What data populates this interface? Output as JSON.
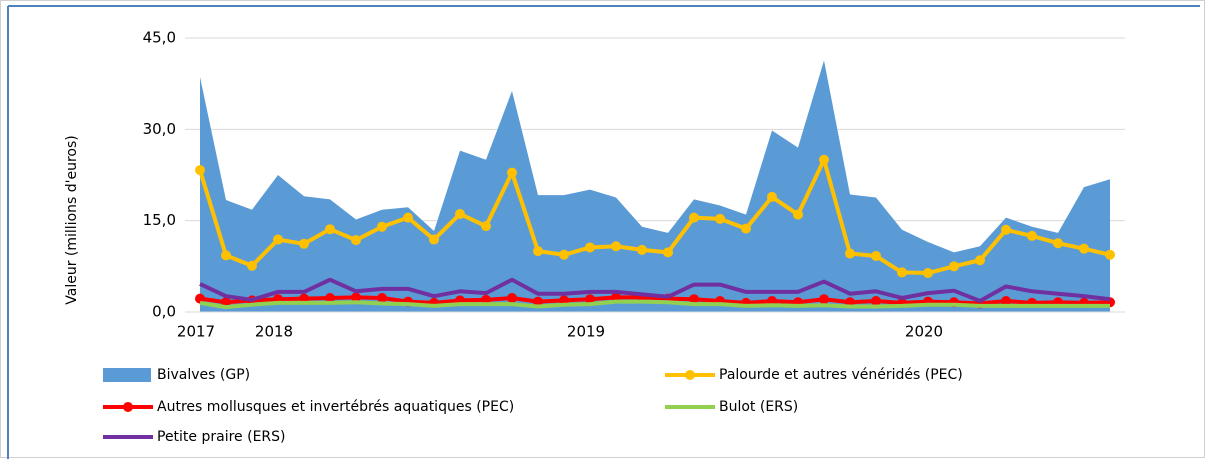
{
  "chart_data": {
    "type": "line",
    "y_label": "Valeur (millions d'euros)",
    "ylim": [
      0,
      45
    ],
    "yticks": [
      {
        "value": 0,
        "label": "0,0"
      },
      {
        "value": 15,
        "label": "15,0"
      },
      {
        "value": 30,
        "label": "30,0"
      },
      {
        "value": 45,
        "label": "45,0"
      }
    ],
    "grid": true,
    "categories": [
      "2017",
      null,
      null,
      "2018",
      null,
      null,
      null,
      null,
      null,
      null,
      null,
      null,
      null,
      null,
      null,
      "2019",
      null,
      null,
      null,
      null,
      null,
      null,
      null,
      null,
      null,
      null,
      null,
      null,
      "2020",
      null,
      null,
      null,
      null,
      null,
      null,
      null
    ],
    "series": [
      {
        "name": "Bivalves (GP)",
        "style": "area",
        "color": "#5b9bd5",
        "values": [
          38.6,
          18.4,
          16.8,
          22.5,
          19,
          18.5,
          15.2,
          16.8,
          17.2,
          13.3,
          26.5,
          25,
          36.3,
          19.2,
          19.2,
          20.1,
          18.8,
          14,
          13,
          18.5,
          17.5,
          16,
          29.8,
          27,
          41.3,
          19.3,
          18.8,
          13.5,
          11.5,
          9.8,
          10.8,
          15.5,
          14,
          13,
          20.5,
          21.8
        ]
      },
      {
        "name": "Palourde et autres vénéridés (PEC)",
        "style": "line",
        "marker": true,
        "color": "#ffc000",
        "values": [
          23.3,
          9.3,
          7.6,
          11.9,
          11.2,
          13.6,
          11.8,
          14,
          15.5,
          11.9,
          16.1,
          14.1,
          22.9,
          10,
          9.4,
          10.6,
          10.8,
          10.2,
          9.8,
          15.5,
          15.3,
          13.7,
          18.9,
          16,
          25,
          9.6,
          9.2,
          6.5,
          6.4,
          7.5,
          8.5,
          13.5,
          12.5,
          11.3,
          10.4,
          9.4
        ]
      },
      {
        "name": "Autres mollusques et invertébrés aquatiques (PEC)",
        "style": "line",
        "marker": true,
        "color": "#ff0000",
        "values": [
          2.2,
          1.6,
          1.9,
          2.1,
          2.2,
          2.3,
          2.4,
          2.3,
          1.7,
          1.5,
          1.9,
          2,
          2.3,
          1.7,
          1.9,
          2.1,
          2.4,
          2.4,
          2.2,
          2.1,
          1.8,
          1.5,
          1.8,
          1.6,
          2.1,
          1.6,
          1.8,
          1.5,
          1.7,
          1.6,
          1.4,
          1.8,
          1.5,
          1.6,
          1.5,
          1.6
        ]
      },
      {
        "name": "Bulot (ERS)",
        "style": "line",
        "marker": false,
        "color": "#92d050",
        "values": [
          1.5,
          0.8,
          1.2,
          1.5,
          1.5,
          1.5,
          1.6,
          1.4,
          1.3,
          1,
          1.3,
          1.3,
          1.3,
          0.9,
          1.2,
          1.3,
          1.7,
          1.7,
          1.6,
          1.3,
          1.3,
          1,
          1.1,
          1,
          1.1,
          0.9,
          0.9,
          1,
          1.2,
          1.2,
          1,
          1,
          1,
          1,
          1,
          1
        ]
      },
      {
        "name": "Petite praire (ERS)",
        "style": "line",
        "marker": false,
        "color": "#7030a0",
        "values": [
          4.6,
          2.6,
          2,
          3.3,
          3.3,
          5.3,
          3.4,
          3.8,
          3.8,
          2.6,
          3.4,
          3.1,
          5.3,
          3,
          3,
          3.3,
          3.3,
          2.9,
          2.5,
          4.5,
          4.5,
          3.3,
          3.3,
          3.3,
          5,
          3,
          3.4,
          2.3,
          3.1,
          3.5,
          1.8,
          4.2,
          3.4,
          3,
          2.6,
          2.1
        ]
      }
    ]
  }
}
